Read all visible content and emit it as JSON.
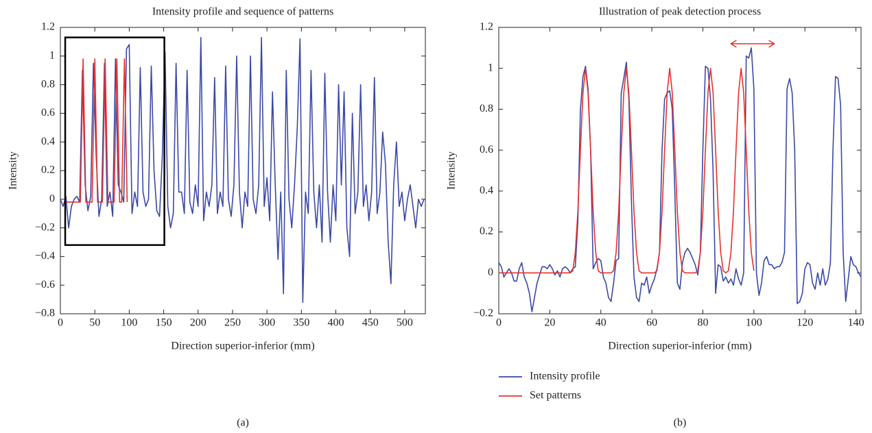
{
  "chart_data": [
    {
      "type": "line",
      "title": "Intensity profile and sequence of patterns",
      "x_label": "Direction superior-inferior (mm)",
      "y_label": "Intensity",
      "caption": "(a)",
      "xlim": [
        0,
        530
      ],
      "ylim": [
        -0.8,
        1.2
      ],
      "xticks": [
        0,
        50,
        100,
        150,
        200,
        250,
        300,
        350,
        400,
        450,
        500
      ],
      "yticks": [
        {
          "value": -0.8,
          "label": "−0.8"
        },
        {
          "value": -0.6,
          "label": "−0.6"
        },
        {
          "value": -0.4,
          "label": "−0.4"
        },
        {
          "value": -0.2,
          "label": "−0.2"
        },
        0,
        0.2,
        0.4,
        0.6,
        0.8,
        1,
        1.2
      ],
      "grid": false,
      "highlight_box": {
        "x": [
          7,
          151
        ],
        "y": [
          -0.32,
          1.13
        ],
        "color": "#000000"
      },
      "series": [
        {
          "color": "#3a48a8",
          "x": [
            0,
            4,
            8,
            12,
            16,
            20,
            24,
            28,
            32,
            36,
            40,
            44,
            48,
            52,
            56,
            60,
            64,
            68,
            72,
            76,
            80,
            84,
            88,
            92,
            96,
            100,
            104,
            108,
            112,
            116,
            120,
            124,
            128,
            132,
            136,
            140,
            144,
            148,
            152,
            156,
            160,
            164,
            168,
            172,
            176,
            180,
            184,
            188,
            192,
            196,
            200,
            204,
            208,
            212,
            216,
            220,
            224,
            228,
            232,
            236,
            240,
            244,
            248,
            252,
            256,
            260,
            264,
            268,
            272,
            276,
            280,
            284,
            288,
            292,
            296,
            300,
            304,
            308,
            312,
            316,
            320,
            324,
            328,
            332,
            336,
            340,
            344,
            348,
            352,
            356,
            360,
            364,
            368,
            372,
            376,
            380,
            384,
            388,
            392,
            396,
            400,
            404,
            408,
            412,
            416,
            420,
            424,
            428,
            432,
            436,
            440,
            444,
            448,
            452,
            456,
            460,
            464,
            468,
            472,
            476,
            480,
            484,
            488,
            492,
            496,
            500,
            504,
            508,
            512,
            516,
            520,
            524,
            528
          ],
          "values": [
            0.0,
            -0.05,
            0.02,
            -0.2,
            -0.05,
            0.0,
            0.02,
            -0.02,
            0.9,
            0.1,
            -0.08,
            0.02,
            0.95,
            0.3,
            -0.12,
            0.0,
            0.95,
            -0.05,
            0.05,
            -0.12,
            0.98,
            0.1,
            0.05,
            -0.02,
            1.05,
            1.08,
            -0.1,
            0.05,
            -0.05,
            0.92,
            0.05,
            -0.05,
            0.0,
            0.93,
            0.2,
            -0.08,
            -0.12,
            0.3,
            1.03,
            -0.05,
            -0.2,
            -0.1,
            0.95,
            0.05,
            0.05,
            -0.1,
            0.9,
            -0.02,
            -0.1,
            0.1,
            -0.05,
            1.13,
            -0.15,
            0.05,
            -0.05,
            0.1,
            0.85,
            -0.1,
            0.05,
            -0.05,
            0.93,
            0.0,
            -0.12,
            0.1,
            1.0,
            0.05,
            -0.2,
            0.05,
            -0.05,
            1.0,
            0.0,
            -0.1,
            0.1,
            1.13,
            -0.05,
            0.15,
            -0.15,
            0.75,
            0.1,
            -0.42,
            0.05,
            -0.66,
            0.9,
            0.0,
            -0.2,
            0.1,
            0.5,
            1.12,
            -0.72,
            0.05,
            -0.1,
            0.9,
            0.05,
            -0.2,
            0.1,
            -0.3,
            0.88,
            0.05,
            -0.3,
            0.1,
            -0.15,
            0.8,
            0.1,
            0.75,
            -0.2,
            -0.4,
            0.6,
            -0.1,
            0.05,
            0.8,
            -0.05,
            0.1,
            -0.15,
            0.05,
            0.85,
            -0.1,
            0.05,
            0.47,
            0.25,
            -0.3,
            -0.59,
            0.1,
            0.4,
            -0.05,
            0.05,
            -0.15,
            0.0,
            0.1,
            -0.05,
            -0.2,
            0.0,
            -0.05,
            0.0
          ]
        },
        {
          "color": "#e8302a",
          "x": [
            8,
            29,
            33,
            37,
            46,
            50,
            54,
            61,
            65,
            69,
            78,
            82,
            86,
            89,
            93,
            97
          ],
          "values": [
            -0.02,
            -0.02,
            0.98,
            -0.02,
            -0.02,
            0.98,
            -0.02,
            -0.02,
            0.98,
            -0.02,
            -0.02,
            0.98,
            -0.02,
            -0.02,
            0.98,
            -0.02
          ]
        }
      ]
    },
    {
      "type": "line",
      "title": "Illustration of peak detection process",
      "x_label": "Direction superior-inferior (mm)",
      "y_label": "Intensity",
      "caption": "(b)",
      "xlim": [
        0,
        142
      ],
      "ylim": [
        -0.2,
        1.2
      ],
      "xticks": [
        0,
        20,
        40,
        60,
        80,
        100,
        120,
        140
      ],
      "yticks": [
        {
          "value": -0.2,
          "label": "−0.2"
        },
        0,
        0.2,
        0.4,
        0.6,
        0.8,
        1,
        1.2
      ],
      "grid": false,
      "legend": "below",
      "annotation_arrow": {
        "x": [
          91,
          108
        ],
        "y": 1.12,
        "color": "#e8302a"
      },
      "x": [
        0,
        1,
        2,
        3,
        4,
        5,
        6,
        7,
        8,
        9,
        10,
        11,
        12,
        13,
        14,
        15,
        16,
        17,
        18,
        19,
        20,
        21,
        22,
        23,
        24,
        25,
        26,
        27,
        28,
        29,
        30,
        31,
        32,
        33,
        34,
        35,
        36,
        37,
        38,
        39,
        40,
        41,
        42,
        43,
        44,
        45,
        46,
        47,
        48,
        49,
        50,
        51,
        52,
        53,
        54,
        55,
        56,
        57,
        58,
        59,
        60,
        61,
        62,
        63,
        64,
        65,
        66,
        67,
        68,
        69,
        70,
        71,
        72,
        73,
        74,
        75,
        76,
        77,
        78,
        79,
        80,
        81,
        82,
        83,
        84,
        85,
        86,
        87,
        88,
        89,
        90,
        91,
        92,
        93,
        94,
        95,
        96,
        97,
        98,
        99,
        100,
        101,
        102,
        103,
        104,
        105,
        106,
        107,
        108,
        109,
        110,
        111,
        112,
        113,
        114,
        115,
        116,
        117,
        118,
        119,
        120,
        121,
        122,
        123,
        124,
        125,
        126,
        127,
        128,
        129,
        130,
        131,
        132,
        133,
        134,
        135,
        136,
        137,
        138,
        139,
        140,
        141,
        142
      ],
      "series": [
        {
          "name": "Intensity profile",
          "color": "#3a48a8",
          "values": [
            0.05,
            0.03,
            -0.02,
            0.0,
            0.02,
            0.0,
            -0.04,
            -0.04,
            0.02,
            0.05,
            -0.02,
            -0.05,
            -0.1,
            -0.19,
            -0.12,
            -0.05,
            -0.01,
            0.03,
            0.03,
            0.02,
            0.04,
            0.02,
            -0.01,
            0.01,
            -0.02,
            0.02,
            0.03,
            0.02,
            0.0,
            0.02,
            0.03,
            0.25,
            0.8,
            0.96,
            1.01,
            0.9,
            0.6,
            0.02,
            0.05,
            0.07,
            0.06,
            -0.02,
            -0.05,
            -0.12,
            -0.14,
            -0.05,
            0.06,
            0.07,
            0.88,
            0.95,
            1.03,
            0.85,
            0.35,
            -0.02,
            -0.12,
            -0.14,
            -0.05,
            -0.06,
            -0.02,
            -0.1,
            -0.06,
            -0.03,
            0.02,
            0.1,
            0.6,
            0.85,
            0.88,
            0.89,
            0.8,
            0.4,
            -0.05,
            -0.08,
            0.05,
            0.1,
            0.12,
            0.1,
            0.07,
            0.04,
            -0.01,
            0.1,
            0.6,
            1.01,
            1.0,
            0.85,
            0.5,
            -0.1,
            0.04,
            0.03,
            -0.04,
            -0.02,
            -0.05,
            -0.03,
            -0.06,
            0.02,
            -0.03,
            -0.06,
            0.0,
            1.06,
            1.05,
            1.1,
            0.9,
            0.0,
            -0.11,
            -0.05,
            0.06,
            0.08,
            0.04,
            0.04,
            0.02,
            0.03,
            0.03,
            0.05,
            0.1,
            0.9,
            0.95,
            0.88,
            0.6,
            -0.15,
            -0.14,
            -0.1,
            0.02,
            0.05,
            0.04,
            -0.05,
            -0.08,
            0.0,
            -0.06,
            0.02,
            -0.06,
            -0.03,
            0.05,
            0.6,
            0.96,
            0.95,
            0.82,
            0.1,
            -0.14,
            -0.03,
            0.08,
            0.04,
            0.03,
            0.0,
            -0.02
          ]
        },
        {
          "name": "Set patterns",
          "color": "#e8302a",
          "values": [
            0,
            0,
            0,
            0,
            0,
            0,
            0,
            0,
            0,
            0,
            0,
            0,
            0,
            0,
            0,
            0,
            0,
            0,
            0,
            0,
            0,
            0,
            0,
            0,
            0,
            0,
            0,
            0,
            0,
            0.01,
            0.1,
            0.3,
            0.6,
            0.88,
            1.0,
            0.88,
            0.6,
            0.3,
            0.1,
            0.01,
            0,
            0,
            0,
            0,
            0,
            0.01,
            0.1,
            0.3,
            0.6,
            0.88,
            1.0,
            0.88,
            0.6,
            0.3,
            0.1,
            0.01,
            0,
            0,
            0,
            0,
            0,
            0,
            0.01,
            0.1,
            0.3,
            0.6,
            0.88,
            1.0,
            0.88,
            0.6,
            0.3,
            0.1,
            0.01,
            0,
            0,
            0,
            0,
            0,
            0.01,
            0.1,
            0.3,
            0.6,
            0.88,
            1.0,
            0.88,
            0.6,
            0.3,
            0.1,
            0.01,
            0,
            0.01,
            0.1,
            0.3,
            0.6,
            0.88,
            1.0,
            0.88,
            0.6,
            0.3,
            0.1,
            0.01,
            null,
            null,
            null,
            null,
            null,
            null,
            null,
            null,
            null,
            null,
            null,
            null,
            null,
            null,
            null,
            null,
            null,
            null,
            null,
            null,
            null,
            null,
            null,
            null,
            null,
            null,
            null,
            null,
            null,
            null,
            null,
            null,
            null,
            null,
            null,
            null,
            null,
            null,
            null,
            null,
            null,
            null
          ]
        }
      ]
    }
  ]
}
